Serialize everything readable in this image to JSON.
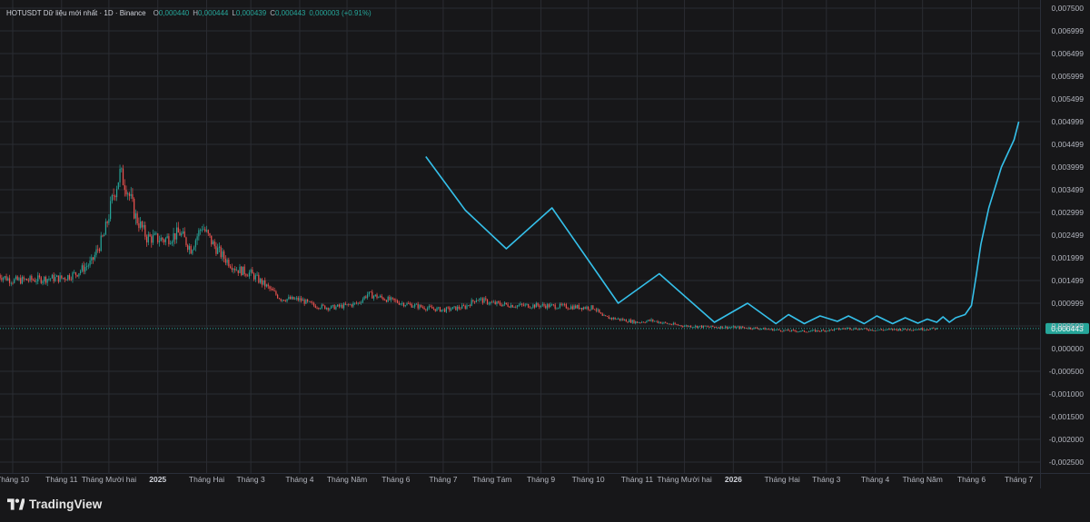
{
  "legend": {
    "symbol": "HOTUSDT Dữ liệu mới nhất · 1D · Binance",
    "open_label": "O",
    "open": "0,000440",
    "high_label": "H",
    "high": "0,000444",
    "low_label": "L",
    "low": "0,000439",
    "close_label": "C",
    "close": "0,000443",
    "change": "0,000003 (+0.91%)"
  },
  "brand": {
    "name": "TradingView"
  },
  "colors": {
    "background": "#171719",
    "grid": "#2a2c32",
    "up": "#26a69a",
    "down": "#ef5350",
    "projection": "#35c0ea",
    "last_price": "#26a69a"
  },
  "chart_data": {
    "type": "line",
    "title": "",
    "ylim": [
      -0.0025,
      0.0075
    ],
    "y_ticks": [
      "0,007500",
      "0,006999",
      "0,006499",
      "0,005999",
      "0,005499",
      "0,004999",
      "0,004499",
      "0,003999",
      "0,003499",
      "0,002999",
      "0,002499",
      "0,001999",
      "0,001499",
      "0,000999",
      "0,000500",
      "0,000000",
      "-0,000500",
      "-0,001000",
      "-0,001500",
      "-0,002000",
      "-0,002500"
    ],
    "y_tick_values": [
      0.0075,
      0.006999,
      0.006499,
      0.005999,
      0.005499,
      0.004999,
      0.004499,
      0.003999,
      0.003499,
      0.002999,
      0.002499,
      0.001999,
      0.001499,
      0.000999,
      0.0005,
      0.0,
      -0.0005,
      -0.001,
      -0.0015,
      -0.002,
      -0.0025
    ],
    "x_ticks": [
      {
        "label": "Tháng 10",
        "date": "2024-10-01",
        "bold": false
      },
      {
        "label": "Tháng 11",
        "date": "2024-11-01",
        "bold": false
      },
      {
        "label": "Tháng Mười hai",
        "date": "2024-12-01",
        "bold": false
      },
      {
        "label": "2025",
        "date": "2025-01-01",
        "bold": true
      },
      {
        "label": "Tháng Hai",
        "date": "2025-02-01",
        "bold": false
      },
      {
        "label": "Tháng 3",
        "date": "2025-03-01",
        "bold": false
      },
      {
        "label": "Tháng 4",
        "date": "2025-04-01",
        "bold": false
      },
      {
        "label": "Tháng Năm",
        "date": "2025-05-01",
        "bold": false
      },
      {
        "label": "Tháng 6",
        "date": "2025-06-01",
        "bold": false
      },
      {
        "label": "Tháng 7",
        "date": "2025-07-01",
        "bold": false
      },
      {
        "label": "Tháng Tám",
        "date": "2025-08-01",
        "bold": false
      },
      {
        "label": "Tháng 9",
        "date": "2025-09-01",
        "bold": false
      },
      {
        "label": "Tháng 10",
        "date": "2025-10-01",
        "bold": false
      },
      {
        "label": "Tháng 11",
        "date": "2025-11-01",
        "bold": false
      },
      {
        "label": "Tháng Mười hai",
        "date": "2025-12-01",
        "bold": false
      },
      {
        "label": "2026",
        "date": "2026-01-01",
        "bold": true
      },
      {
        "label": "Tháng Hai",
        "date": "2026-02-01",
        "bold": false
      },
      {
        "label": "Tháng 3",
        "date": "2026-03-01",
        "bold": false
      },
      {
        "label": "Tháng 4",
        "date": "2026-04-01",
        "bold": false
      },
      {
        "label": "Tháng Năm",
        "date": "2026-05-01",
        "bold": false
      },
      {
        "label": "Tháng 6",
        "date": "2026-06-01",
        "bold": false
      },
      {
        "label": "Tháng 7",
        "date": "2026-07-01",
        "bold": false
      }
    ],
    "last_price": {
      "label": "0,000443",
      "value": 0.000443
    },
    "price_close_series": {
      "name": "",
      "points": [
        [
          "2024-09-22",
          0.00162
        ],
        [
          "2024-10-01",
          0.0015
        ],
        [
          "2024-10-15",
          0.00152
        ],
        [
          "2024-10-25",
          0.00155
        ],
        [
          "2024-11-01",
          0.00155
        ],
        [
          "2024-11-10",
          0.00165
        ],
        [
          "2024-11-20",
          0.0019
        ],
        [
          "2024-11-28",
          0.0025
        ],
        [
          "2024-12-04",
          0.0034
        ],
        [
          "2024-12-08",
          0.00385
        ],
        [
          "2024-12-12",
          0.0036
        ],
        [
          "2024-12-18",
          0.0029
        ],
        [
          "2024-12-25",
          0.00245
        ],
        [
          "2025-01-05",
          0.0024
        ],
        [
          "2025-01-15",
          0.00255
        ],
        [
          "2025-01-22",
          0.0022
        ],
        [
          "2025-01-29",
          0.0027
        ],
        [
          "2025-02-05",
          0.0023
        ],
        [
          "2025-02-12",
          0.002
        ],
        [
          "2025-02-20",
          0.00175
        ],
        [
          "2025-03-01",
          0.00165
        ],
        [
          "2025-03-10",
          0.0014
        ],
        [
          "2025-03-20",
          0.0011
        ],
        [
          "2025-04-01",
          0.00108
        ],
        [
          "2025-04-10",
          0.00095
        ],
        [
          "2025-04-20",
          0.0009
        ],
        [
          "2025-05-01",
          0.00095
        ],
        [
          "2025-05-08",
          0.001
        ],
        [
          "2025-05-14",
          0.0012
        ],
        [
          "2025-05-25",
          0.0011
        ],
        [
          "2025-06-05",
          0.001
        ],
        [
          "2025-06-20",
          0.0009
        ],
        [
          "2025-07-01",
          0.00085
        ],
        [
          "2025-07-15",
          0.00092
        ],
        [
          "2025-07-22",
          0.0011
        ],
        [
          "2025-08-01",
          0.001
        ],
        [
          "2025-08-15",
          0.00095
        ],
        [
          "2025-09-01",
          0.00095
        ],
        [
          "2025-09-20",
          0.00092
        ],
        [
          "2025-10-05",
          0.0009
        ],
        [
          "2025-10-10",
          0.0007
        ],
        [
          "2025-10-20",
          0.00065
        ],
        [
          "2025-11-01",
          0.00058
        ],
        [
          "2025-11-10",
          0.00062
        ],
        [
          "2025-11-20",
          0.00055
        ],
        [
          "2025-12-01",
          0.0005
        ],
        [
          "2025-12-15",
          0.00048
        ],
        [
          "2026-01-01",
          0.00047
        ],
        [
          "2026-01-15",
          0.00045
        ],
        [
          "2026-02-01",
          0.0004
        ],
        [
          "2026-02-15",
          0.00038
        ],
        [
          "2026-03-01",
          0.0004
        ],
        [
          "2026-03-15",
          0.00045
        ],
        [
          "2026-04-01",
          0.00041
        ],
        [
          "2026-04-15",
          0.00042
        ],
        [
          "2026-05-01",
          0.00043
        ],
        [
          "2026-05-10",
          0.00044
        ]
      ]
    },
    "projection_series": {
      "name": "",
      "points": [
        [
          "2025-06-20",
          0.00423
        ],
        [
          "2025-07-15",
          0.00305
        ],
        [
          "2025-08-10",
          0.0022
        ],
        [
          "2025-09-08",
          0.0031
        ],
        [
          "2025-10-20",
          0.001
        ],
        [
          "2025-11-15",
          0.00165
        ],
        [
          "2025-12-20",
          0.00058
        ],
        [
          "2026-01-10",
          0.001
        ],
        [
          "2026-01-28",
          0.00055
        ],
        [
          "2026-02-05",
          0.00075
        ],
        [
          "2026-02-15",
          0.00055
        ],
        [
          "2026-02-25",
          0.00072
        ],
        [
          "2026-03-08",
          0.0006
        ],
        [
          "2026-03-15",
          0.00072
        ],
        [
          "2026-03-25",
          0.00055
        ],
        [
          "2026-04-02",
          0.00072
        ],
        [
          "2026-04-12",
          0.00055
        ],
        [
          "2026-04-20",
          0.00068
        ],
        [
          "2026-04-28",
          0.00056
        ],
        [
          "2026-05-04",
          0.00065
        ],
        [
          "2026-05-10",
          0.00058
        ],
        [
          "2026-05-14",
          0.0007
        ],
        [
          "2026-05-18",
          0.00058
        ],
        [
          "2026-05-22",
          0.00068
        ],
        [
          "2026-05-28",
          0.00075
        ],
        [
          "2026-06-01",
          0.00095
        ],
        [
          "2026-06-04",
          0.0016
        ],
        [
          "2026-06-07",
          0.0023
        ],
        [
          "2026-06-12",
          0.0031
        ],
        [
          "2026-06-20",
          0.004
        ],
        [
          "2026-06-28",
          0.0046
        ],
        [
          "2026-07-01",
          0.005
        ]
      ]
    }
  }
}
